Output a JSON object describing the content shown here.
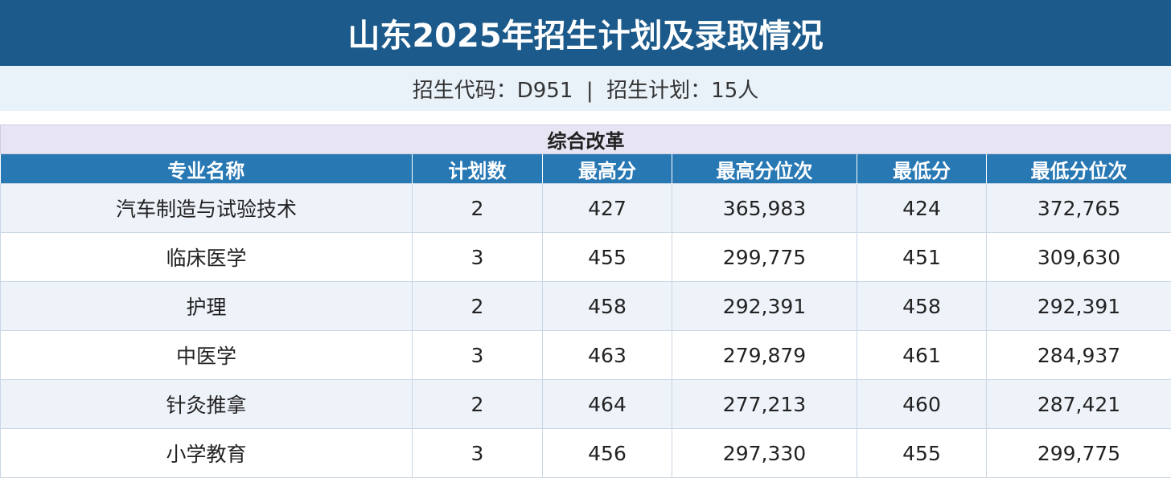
{
  "header": {
    "title": "山东2025年招生计划及录取情况",
    "subtitle": "招生代码：D951  |  招生计划：15人"
  },
  "table": {
    "section": "综合改革",
    "columns": [
      "专业名称",
      "计划数",
      "最高分",
      "最高分位次",
      "最低分",
      "最低分位次"
    ],
    "rows": [
      [
        "汽车制造与试验技术",
        "2",
        "427",
        "365,983",
        "424",
        "372,765"
      ],
      [
        "临床医学",
        "3",
        "455",
        "299,775",
        "451",
        "309,630"
      ],
      [
        "护理",
        "2",
        "458",
        "292,391",
        "458",
        "292,391"
      ],
      [
        "中医学",
        "3",
        "463",
        "279,879",
        "461",
        "284,937"
      ],
      [
        "针灸推拿",
        "2",
        "464",
        "277,213",
        "460",
        "287,421"
      ],
      [
        "小学教育",
        "3",
        "456",
        "297,330",
        "455",
        "299,775"
      ]
    ]
  }
}
